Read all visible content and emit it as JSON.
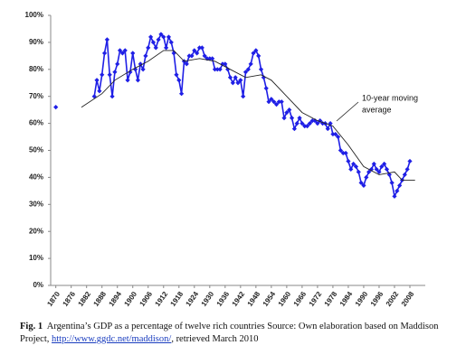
{
  "chart_data": {
    "type": "line",
    "annotation": [
      "10-year moving",
      "average"
    ],
    "xlim": [
      1868,
      2014
    ],
    "ylim": [
      0,
      100
    ],
    "xticks": [
      1870,
      1876,
      1882,
      1888,
      1894,
      1900,
      1906,
      1912,
      1918,
      1924,
      1930,
      1936,
      1942,
      1948,
      1954,
      1960,
      1966,
      1972,
      1978,
      1984,
      1990,
      1996,
      2002,
      2008
    ],
    "yticks": [
      {
        "value": 0,
        "label": "0%"
      },
      {
        "value": 10,
        "label": "10%"
      },
      {
        "value": 20,
        "label": "20%"
      },
      {
        "value": 30,
        "label": "30%"
      },
      {
        "value": 40,
        "label": "40%"
      },
      {
        "value": 50,
        "label": "50%"
      },
      {
        "value": 60,
        "label": "60%"
      },
      {
        "value": 70,
        "label": "70%"
      },
      {
        "value": 80,
        "label": "80%"
      },
      {
        "value": 90,
        "label": "90%"
      },
      {
        "value": 100,
        "label": "100%"
      }
    ],
    "series": [
      {
        "color": "#1f1fe6",
        "markers": true,
        "x": [
          1870,
          1871,
          1885,
          1886,
          1887,
          1888,
          1889,
          1890,
          1891,
          1892,
          1893,
          1894,
          1895,
          1896,
          1897,
          1898,
          1899,
          1900,
          1901,
          1902,
          1903,
          1904,
          1905,
          1906,
          1907,
          1908,
          1909,
          1910,
          1911,
          1912,
          1913,
          1914,
          1915,
          1916,
          1917,
          1918,
          1919,
          1920,
          1921,
          1922,
          1923,
          1924,
          1925,
          1926,
          1927,
          1928,
          1929,
          1930,
          1931,
          1932,
          1933,
          1934,
          1935,
          1936,
          1937,
          1938,
          1939,
          1940,
          1941,
          1942,
          1943,
          1944,
          1945,
          1946,
          1947,
          1948,
          1949,
          1950,
          1951,
          1952,
          1953,
          1954,
          1955,
          1956,
          1957,
          1958,
          1959,
          1960,
          1961,
          1962,
          1963,
          1964,
          1965,
          1966,
          1967,
          1968,
          1969,
          1970,
          1971,
          1972,
          1973,
          1974,
          1975,
          1976,
          1977,
          1978,
          1979,
          1980,
          1981,
          1982,
          1983,
          1984,
          1985,
          1986,
          1987,
          1988,
          1989,
          1990,
          1991,
          1992,
          1993,
          1994,
          1995,
          1996,
          1997,
          1998,
          1999,
          2000,
          2001,
          2002,
          2003,
          2004,
          2005,
          2006,
          2007,
          2008
        ],
        "values": [
          66,
          null,
          70,
          76,
          72,
          78,
          86,
          91,
          78,
          70,
          79,
          82,
          87,
          86,
          87,
          76,
          79,
          86,
          80,
          76,
          82,
          80,
          85,
          88,
          92,
          90,
          88,
          91,
          93,
          92,
          88,
          92,
          90,
          86,
          78,
          76,
          71,
          83,
          82,
          85,
          85,
          87,
          86,
          88,
          88,
          85,
          84,
          84,
          84,
          80,
          80,
          80,
          82,
          82,
          80,
          77,
          75,
          77,
          75,
          76,
          70,
          79,
          80,
          82,
          86,
          87,
          85,
          80,
          77,
          73,
          68,
          69,
          68,
          67,
          68,
          68,
          62,
          64,
          65,
          62,
          58,
          60,
          62,
          60,
          59,
          59,
          60,
          61,
          61,
          60,
          61,
          60,
          60,
          58,
          60,
          56,
          56,
          55,
          50,
          49,
          49,
          46,
          43,
          45,
          44,
          42,
          38,
          37,
          40,
          42,
          43,
          45,
          43,
          42,
          44,
          45,
          43,
          41,
          38,
          33,
          35,
          37,
          39,
          41,
          43,
          46
        ]
      },
      {
        "color": "#222222",
        "markers": false,
        "x": [
          1880,
          1888,
          1893,
          1900,
          1906,
          1912,
          1916,
          1920,
          1926,
          1932,
          1938,
          1944,
          1950,
          1954,
          1960,
          1966,
          1972,
          1978,
          1984,
          1990,
          1996,
          2002,
          2005,
          2010
        ],
        "values": [
          66,
          71,
          76,
          80,
          83,
          87,
          87,
          83,
          84,
          83,
          80,
          77,
          78,
          76,
          70,
          64,
          61,
          59,
          52,
          44,
          41,
          42,
          39,
          39
        ]
      }
    ]
  },
  "caption": {
    "label": "Fig. 1",
    "text": "Argentina’s GDP as a percentage of twelve rich countries Source: Own elaboration based on Maddison Project,",
    "link": "http://www.ggdc.net/maddison/",
    "tail": ", retrieved March 2010"
  }
}
